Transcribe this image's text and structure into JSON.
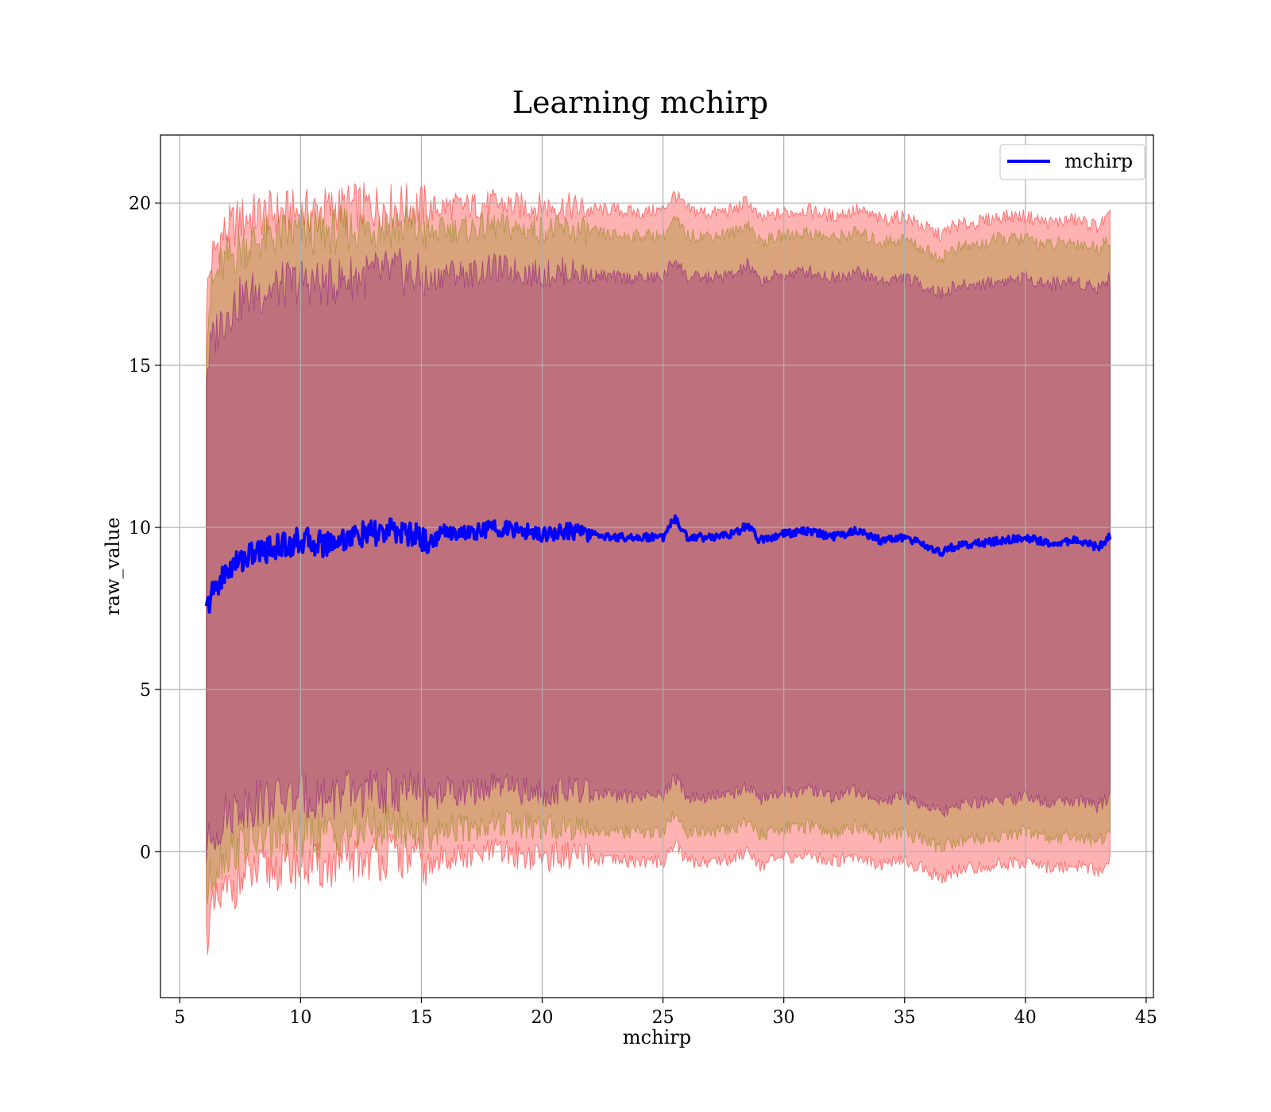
{
  "chart_data": {
    "type": "line",
    "title": "Learning mchirp",
    "xlabel": "mchirp",
    "ylabel": "raw_value",
    "xlim": [
      4.2,
      45.3
    ],
    "ylim": [
      -4.5,
      22.1
    ],
    "xticks": [
      5,
      10,
      15,
      20,
      25,
      30,
      35,
      40,
      45
    ],
    "yticks": [
      0,
      5,
      10,
      15,
      20
    ],
    "grid": true,
    "legend": {
      "position": "top-right",
      "entries": [
        "mchirp"
      ]
    },
    "x_range": [
      6.1,
      43.5
    ],
    "series": [
      {
        "name": "mchirp",
        "color": "#0000ff",
        "x": [
          6.1,
          6.3,
          6.6,
          7.0,
          7.5,
          8.0,
          9.0,
          10.0,
          11.0,
          12.0,
          13.0,
          14.0,
          15.0,
          15.3,
          16.0,
          17.0,
          18.0,
          19.0,
          20.0,
          21.0,
          22.0,
          23.0,
          24.0,
          25.0,
          25.5,
          26.0,
          27.0,
          28.0,
          28.5,
          29.0,
          30.0,
          31.0,
          32.0,
          33.0,
          34.0,
          35.0,
          36.0,
          36.5,
          37.0,
          38.0,
          39.0,
          40.0,
          41.0,
          42.0,
          43.0,
          43.5
        ],
        "y": [
          7.4,
          7.9,
          8.3,
          8.7,
          9.0,
          9.2,
          9.4,
          9.6,
          9.5,
          9.7,
          9.8,
          9.9,
          9.7,
          9.5,
          9.9,
          9.8,
          10.0,
          9.9,
          9.8,
          9.9,
          9.8,
          9.7,
          9.7,
          9.7,
          10.3,
          9.7,
          9.7,
          9.8,
          10.1,
          9.6,
          9.8,
          9.9,
          9.7,
          9.9,
          9.6,
          9.7,
          9.4,
          9.2,
          9.4,
          9.5,
          9.6,
          9.7,
          9.5,
          9.6,
          9.4,
          9.7
        ]
      }
    ],
    "bands": [
      {
        "color": "#ff0000",
        "opacity": 0.3,
        "x": [
          6.1,
          6.3,
          6.6,
          7.0,
          7.5,
          8.0,
          9.0,
          10.0,
          11.0,
          12.0,
          13.0,
          14.0,
          15.0,
          15.3,
          16.0,
          17.0,
          18.0,
          19.0,
          20.0,
          21.0,
          22.0,
          23.0,
          24.0,
          25.0,
          25.5,
          26.0,
          27.0,
          28.0,
          28.5,
          29.0,
          30.0,
          31.0,
          32.0,
          33.0,
          34.0,
          35.0,
          36.0,
          36.5,
          37.0,
          38.0,
          39.0,
          40.0,
          41.0,
          42.0,
          43.0,
          43.5
        ],
        "upper": [
          17.0,
          18.2,
          18.8,
          19.2,
          19.5,
          19.6,
          19.7,
          19.7,
          19.8,
          19.9,
          19.9,
          19.9,
          19.9,
          19.8,
          19.9,
          19.9,
          20.0,
          19.9,
          19.9,
          19.9,
          19.8,
          19.8,
          19.7,
          19.8,
          20.3,
          19.8,
          19.7,
          19.8,
          20.1,
          19.5,
          19.7,
          19.8,
          19.6,
          19.8,
          19.5,
          19.6,
          19.2,
          19.0,
          19.3,
          19.4,
          19.6,
          19.6,
          19.4,
          19.5,
          19.3,
          19.6
        ],
        "lower": [
          -2.6,
          -2.0,
          -1.6,
          -1.2,
          -0.9,
          -0.7,
          -0.5,
          -0.4,
          -0.5,
          -0.3,
          -0.2,
          -0.1,
          -0.3,
          -0.6,
          -0.1,
          -0.2,
          0.0,
          -0.1,
          -0.2,
          -0.1,
          -0.2,
          -0.3,
          -0.3,
          -0.3,
          0.3,
          -0.3,
          -0.3,
          -0.2,
          0.1,
          -0.4,
          -0.2,
          -0.1,
          -0.3,
          -0.1,
          -0.4,
          -0.3,
          -0.6,
          -0.8,
          -0.6,
          -0.5,
          -0.4,
          -0.3,
          -0.5,
          -0.4,
          -0.6,
          -0.3
        ]
      },
      {
        "color": "#808000",
        "opacity": 0.3,
        "x": [
          6.1,
          6.3,
          6.6,
          7.0,
          7.5,
          8.0,
          9.0,
          10.0,
          11.0,
          12.0,
          13.0,
          14.0,
          15.0,
          15.3,
          16.0,
          17.0,
          18.0,
          19.0,
          20.0,
          21.0,
          22.0,
          23.0,
          24.0,
          25.0,
          25.5,
          26.0,
          27.0,
          28.0,
          28.5,
          29.0,
          30.0,
          31.0,
          32.0,
          33.0,
          34.0,
          35.0,
          36.0,
          36.5,
          37.0,
          38.0,
          39.0,
          40.0,
          41.0,
          42.0,
          43.0,
          43.5
        ],
        "upper": [
          16.2,
          17.3,
          17.9,
          18.3,
          18.6,
          18.8,
          19.0,
          19.1,
          19.1,
          19.2,
          19.3,
          19.3,
          19.2,
          19.0,
          19.2,
          19.2,
          19.3,
          19.2,
          19.2,
          19.2,
          19.1,
          19.0,
          19.0,
          19.0,
          19.5,
          19.0,
          19.0,
          19.1,
          19.4,
          18.8,
          19.0,
          19.1,
          18.9,
          19.1,
          18.8,
          18.9,
          18.5,
          18.3,
          18.6,
          18.7,
          18.9,
          18.9,
          18.7,
          18.8,
          18.6,
          18.9
        ],
        "lower": [
          -1.4,
          -0.8,
          -0.3,
          0.0,
          0.2,
          0.3,
          0.4,
          0.5,
          0.5,
          0.6,
          0.7,
          0.8,
          0.6,
          0.4,
          0.8,
          0.7,
          0.9,
          0.8,
          0.7,
          0.8,
          0.7,
          0.6,
          0.6,
          0.6,
          1.2,
          0.6,
          0.6,
          0.7,
          1.0,
          0.5,
          0.7,
          0.8,
          0.6,
          0.8,
          0.5,
          0.6,
          0.3,
          0.1,
          0.3,
          0.4,
          0.5,
          0.6,
          0.4,
          0.5,
          0.3,
          0.6
        ]
      },
      {
        "color": "#800080",
        "opacity": 0.3,
        "x": [
          6.1,
          6.3,
          6.6,
          7.0,
          7.5,
          8.0,
          9.0,
          10.0,
          11.0,
          12.0,
          13.0,
          14.0,
          15.0,
          15.3,
          16.0,
          17.0,
          18.0,
          19.0,
          20.0,
          21.0,
          22.0,
          23.0,
          24.0,
          25.0,
          25.5,
          26.0,
          27.0,
          28.0,
          28.5,
          29.0,
          30.0,
          31.0,
          32.0,
          33.0,
          34.0,
          35.0,
          36.0,
          36.5,
          37.0,
          38.0,
          39.0,
          40.0,
          41.0,
          42.0,
          43.0,
          43.5
        ],
        "upper": [
          14.8,
          15.6,
          16.2,
          16.7,
          17.0,
          17.2,
          17.4,
          17.6,
          17.5,
          17.7,
          17.8,
          17.9,
          17.7,
          17.5,
          17.9,
          17.8,
          18.0,
          17.9,
          17.8,
          17.9,
          17.8,
          17.7,
          17.7,
          17.7,
          18.3,
          17.7,
          17.7,
          17.8,
          18.1,
          17.6,
          17.8,
          17.9,
          17.7,
          17.9,
          17.6,
          17.7,
          17.4,
          17.2,
          17.4,
          17.5,
          17.6,
          17.7,
          17.5,
          17.6,
          17.4,
          17.7
        ],
        "lower": [
          0.0,
          0.4,
          0.8,
          1.2,
          1.4,
          1.5,
          1.6,
          1.7,
          1.7,
          1.8,
          1.8,
          1.9,
          1.7,
          1.5,
          1.9,
          1.8,
          2.0,
          1.9,
          1.8,
          1.9,
          1.8,
          1.7,
          1.7,
          1.7,
          2.3,
          1.7,
          1.7,
          1.8,
          2.1,
          1.6,
          1.8,
          1.9,
          1.7,
          1.9,
          1.6,
          1.7,
          1.4,
          1.2,
          1.4,
          1.5,
          1.6,
          1.7,
          1.5,
          1.6,
          1.4,
          1.7
        ]
      }
    ]
  }
}
